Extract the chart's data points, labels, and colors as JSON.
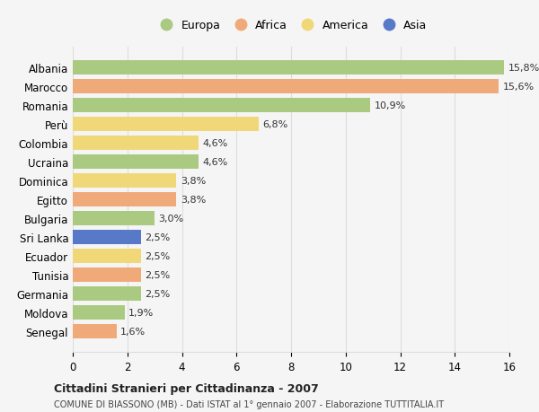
{
  "countries": [
    "Albania",
    "Marocco",
    "Romania",
    "Perù",
    "Colombia",
    "Ucraina",
    "Dominica",
    "Egitto",
    "Bulgaria",
    "Sri Lanka",
    "Ecuador",
    "Tunisia",
    "Germania",
    "Moldova",
    "Senegal"
  ],
  "values": [
    15.8,
    15.6,
    10.9,
    6.8,
    4.6,
    4.6,
    3.8,
    3.8,
    3.0,
    2.5,
    2.5,
    2.5,
    2.5,
    1.9,
    1.6
  ],
  "labels": [
    "15,8%",
    "15,6%",
    "10,9%",
    "6,8%",
    "4,6%",
    "4,6%",
    "3,8%",
    "3,8%",
    "3,0%",
    "2,5%",
    "2,5%",
    "2,5%",
    "2,5%",
    "1,9%",
    "1,6%"
  ],
  "continents": [
    "Europa",
    "Africa",
    "Europa",
    "America",
    "America",
    "Europa",
    "America",
    "Africa",
    "Europa",
    "Asia",
    "America",
    "Africa",
    "Europa",
    "Europa",
    "Africa"
  ],
  "colors": {
    "Europa": "#aaca82",
    "Africa": "#f0aa7a",
    "America": "#f0d878",
    "Asia": "#5878c8"
  },
  "legend_order": [
    "Europa",
    "Africa",
    "America",
    "Asia"
  ],
  "title": "Cittadini Stranieri per Cittadinanza - 2007",
  "subtitle": "COMUNE DI BIASSONO (MB) - Dati ISTAT al 1° gennaio 2007 - Elaborazione TUTTITALIA.IT",
  "xlim": [
    0,
    16
  ],
  "xticks": [
    0,
    2,
    4,
    6,
    8,
    10,
    12,
    14,
    16
  ],
  "background_color": "#f5f5f5",
  "grid_color": "#dddddd"
}
